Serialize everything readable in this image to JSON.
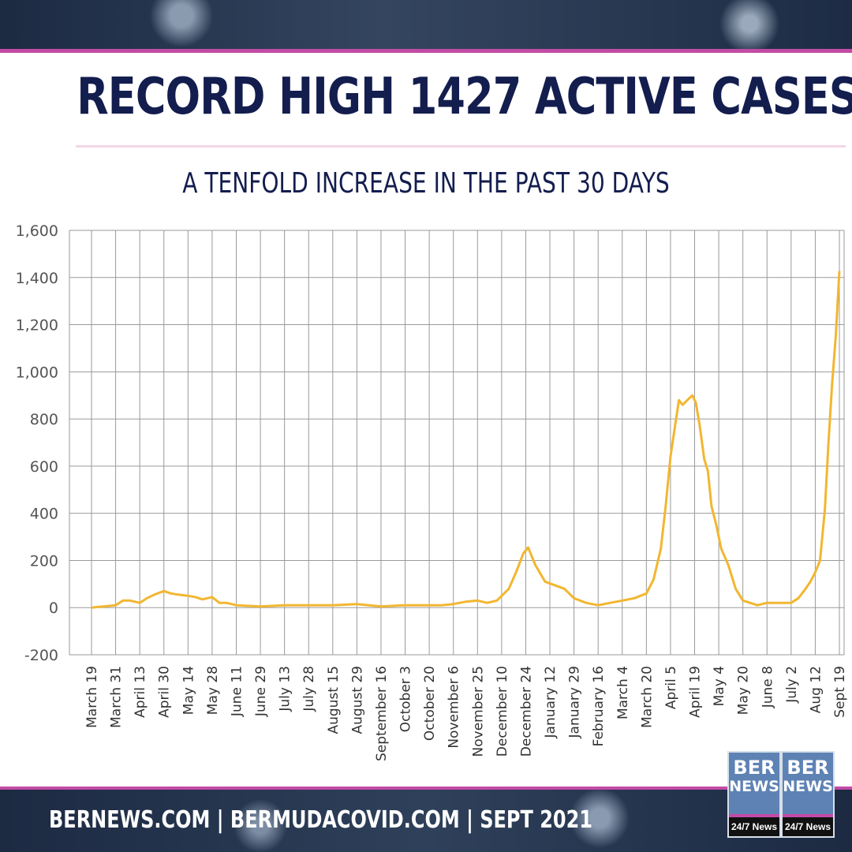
{
  "title": "RECORD HIGH 1427 ACTIVE CASES",
  "subtitle": "A TENFOLD INCREASE IN THE PAST 30 DAYS",
  "footer": "BERNEWS.COM  |  BERMUDACOVID.COM  |  SEPT  2021",
  "logo": {
    "line1": "BER",
    "line2": "NEWS",
    "tag": "24/7 News"
  },
  "colors": {
    "navy": "#131d4e",
    "accent": "#c24ba6",
    "line": "#f2b630",
    "grid": "#9a9a9a"
  },
  "chart_data": {
    "type": "line",
    "title": "",
    "xlabel": "",
    "ylabel": "",
    "ylim": [
      -200,
      1600
    ],
    "yticks": [
      -200,
      0,
      200,
      400,
      600,
      800,
      1000,
      1200,
      1400,
      1600
    ],
    "ytick_labels": [
      "-200",
      "0",
      "200",
      "400",
      "600",
      "800",
      "1,000",
      "1,200",
      "1,400",
      "1,600"
    ],
    "categories": [
      "March 19",
      "March 31",
      "April 13",
      "April 30",
      "May 14",
      "May 28",
      "June 11",
      "June 29",
      "July 13",
      "July 28",
      "August 15",
      "August 29",
      "September 16",
      "October 3",
      "October 20",
      "November 6",
      "November 25",
      "December 10",
      "December 24",
      "January 12",
      "January 29",
      "February 16",
      "March 4",
      "March 20",
      "April 5",
      "April 19",
      "May 4",
      "May 20",
      "June 8",
      "July 2",
      "Aug 12",
      "Sept 19"
    ],
    "series": [
      {
        "x": [
          0,
          0.5,
          1,
          1.3,
          1.6,
          2,
          2.3,
          2.6,
          3,
          3.3,
          3.6,
          4,
          4.3,
          4.6,
          5,
          5.3,
          5.6,
          6,
          7,
          8,
          9,
          10,
          11,
          12,
          13,
          14,
          14.5,
          15,
          15.5,
          16,
          16.4,
          16.8,
          17,
          17.3,
          17.6,
          17.9,
          18.1,
          18.4,
          18.8,
          19.2,
          19.6,
          20,
          20.5,
          21,
          21.5,
          22,
          22.5,
          23,
          23.3,
          23.6,
          23.8,
          24,
          24.2,
          24.35,
          24.5,
          24.7,
          24.9,
          25.05,
          25.2,
          25.4,
          25.55,
          25.7,
          25.9,
          26.1,
          26.4,
          26.7,
          27,
          27.3,
          27.6,
          28,
          28.5,
          29,
          29.3,
          29.6,
          29.8,
          30,
          30.2,
          30.4,
          30.55,
          30.7,
          30.85,
          31
        ],
        "y": [
          0,
          5,
          10,
          30,
          30,
          20,
          40,
          55,
          70,
          60,
          55,
          50,
          45,
          35,
          45,
          20,
          20,
          10,
          5,
          10,
          10,
          10,
          15,
          5,
          10,
          10,
          10,
          15,
          25,
          30,
          20,
          30,
          50,
          80,
          150,
          230,
          255,
          180,
          110,
          95,
          80,
          40,
          20,
          10,
          20,
          30,
          40,
          60,
          120,
          250,
          430,
          640,
          780,
          880,
          860,
          880,
          900,
          870,
          780,
          630,
          580,
          430,
          350,
          250,
          180,
          80,
          30,
          20,
          10,
          20,
          20,
          20,
          40,
          80,
          110,
          150,
          200,
          420,
          700,
          950,
          1150,
          1427
        ]
      }
    ]
  }
}
